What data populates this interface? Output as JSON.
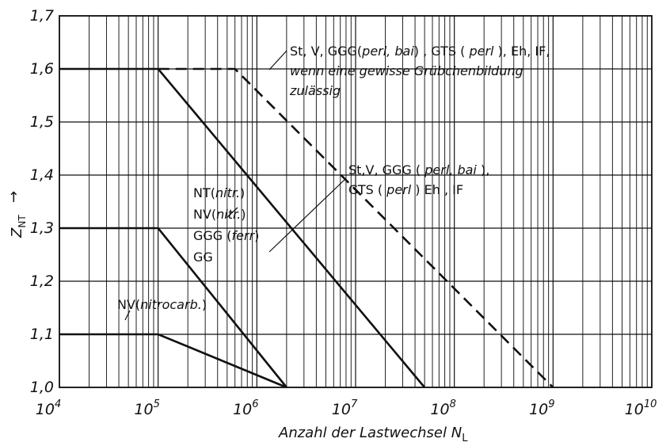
{
  "chart_data": {
    "type": "line",
    "xscale": "log",
    "xlim": [
      10000,
      10000000000
    ],
    "ylim": [
      1.0,
      1.7
    ],
    "grid": true,
    "xlabel_prefix": "Anzahl der Lastwechsel N",
    "xlabel_sub": "L",
    "ylabel_main": "Z",
    "ylabel_sub": "NT",
    "ylabel_arrow": "→",
    "x_ticks": [
      {
        "value": 10000,
        "base": "10",
        "exp": "4"
      },
      {
        "value": 100000,
        "base": "10",
        "exp": "5"
      },
      {
        "value": 1000000,
        "base": "10",
        "exp": "6"
      },
      {
        "value": 10000000,
        "base": "10",
        "exp": "7"
      },
      {
        "value": 100000000,
        "base": "10",
        "exp": "8"
      },
      {
        "value": 1000000000,
        "base": "10",
        "exp": "9"
      },
      {
        "value": 10000000000,
        "base": "10",
        "exp": "10"
      }
    ],
    "y_ticks": [
      {
        "value": 1.0,
        "label": "1,0"
      },
      {
        "value": 1.1,
        "label": "1,1"
      },
      {
        "value": 1.2,
        "label": "1,2"
      },
      {
        "value": 1.3,
        "label": "1,3"
      },
      {
        "value": 1.4,
        "label": "1,4"
      },
      {
        "value": 1.5,
        "label": "1,5"
      },
      {
        "value": 1.6,
        "label": "1,6"
      },
      {
        "value": 1.7,
        "label": "1,7"
      }
    ],
    "series": [
      {
        "style": "solid",
        "points": [
          [
            10000,
            1.6
          ],
          [
            100000,
            1.6
          ],
          [
            50000000,
            1.0
          ]
        ]
      },
      {
        "style": "dashed",
        "points": [
          [
            100000,
            1.6
          ],
          [
            600000,
            1.6
          ],
          [
            1000000000,
            1.0
          ]
        ]
      },
      {
        "style": "solid",
        "points": [
          [
            10000,
            1.3
          ],
          [
            100000,
            1.3
          ],
          [
            2000000,
            1.0
          ]
        ]
      },
      {
        "style": "solid",
        "points": [
          [
            10000,
            1.1
          ],
          [
            100000,
            1.1
          ],
          [
            2000000,
            1.0
          ]
        ]
      }
    ],
    "annotations": [
      {
        "id": "ann-dashed",
        "lines": [
          [
            {
              "t": "St, V, GGG("
            },
            {
              "t": "perl, bai",
              "i": true
            },
            {
              "t": ") , GTS ( "
            },
            {
              "t": "perl",
              "i": true
            },
            {
              "t": " ), Eh, IF,"
            }
          ],
          [
            {
              "t": "wenn eine gewisse Grübchenbildung",
              "i": true
            }
          ],
          [
            {
              "t": "zulässig",
              "i": true
            }
          ]
        ]
      },
      {
        "id": "ann-solid-upper",
        "lines": [
          [
            {
              "t": "St,V, GGG ( "
            },
            {
              "t": "perl, bai",
              "i": true
            },
            {
              "t": " ),"
            }
          ],
          [
            {
              "t": "GTS ( "
            },
            {
              "t": "perl",
              "i": true
            },
            {
              "t": " ) Eh , IF"
            }
          ]
        ]
      },
      {
        "id": "ann-mid",
        "lines": [
          [
            {
              "t": "NT("
            },
            {
              "t": "nitr.",
              "i": true
            },
            {
              "t": ")"
            }
          ],
          [
            {
              "t": "NV("
            },
            {
              "t": "nitr.",
              "i": true
            },
            {
              "t": ")"
            }
          ],
          [
            {
              "t": "GGG ("
            },
            {
              "t": "ferr",
              "i": true
            },
            {
              "t": ")"
            }
          ],
          [
            {
              "t": "GG"
            }
          ]
        ]
      },
      {
        "id": "ann-low",
        "lines": [
          [
            {
              "t": "NV("
            },
            {
              "t": "nitrocarb.",
              "i": true
            },
            {
              "t": ")"
            }
          ]
        ]
      }
    ]
  }
}
